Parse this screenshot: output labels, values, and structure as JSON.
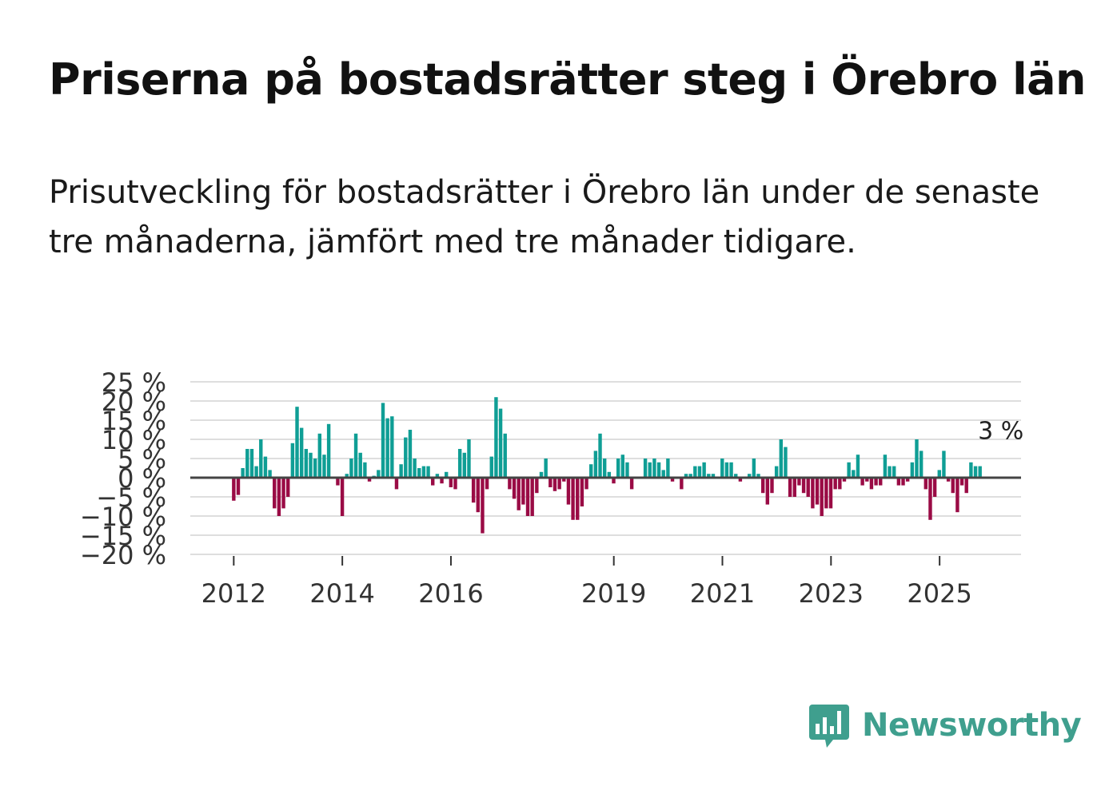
{
  "title": "Priserna på bostadsrätter steg i Örebro län",
  "subtitle": "Prisutveckling för bostadsrätter i Örebro län under de senaste tre månaderna, jämfört med tre månader tidigare.",
  "brand": {
    "name": "Newsworthy",
    "icon": "newsworthy-logo-icon",
    "color": "#3f9f8e"
  },
  "colors": {
    "positive": "#0f9e95",
    "negative": "#9a0b45",
    "grid": "#dedede",
    "zero_line": "#444444"
  },
  "chart_data": {
    "type": "bar",
    "title": "Priserna på bostadsrätter steg i Örebro län",
    "ylabel": "",
    "xlabel": "",
    "ylim": [
      -20,
      25
    ],
    "yticks": [
      25,
      20,
      15,
      10,
      5,
      0,
      -5,
      -10,
      -15,
      -20
    ],
    "ytick_labels": [
      "25 %",
      "20 %",
      "15 %",
      "10 %",
      "5 %",
      "0 %",
      "−5 %",
      "−10 %",
      "−15 %",
      "−20 %"
    ],
    "xticks": [
      {
        "label": "2012",
        "year": 2012
      },
      {
        "label": "2014",
        "year": 2014
      },
      {
        "label": "2016",
        "year": 2016
      },
      {
        "label": "2019",
        "year": 2019
      },
      {
        "label": "2021",
        "year": 2021
      },
      {
        "label": "2023",
        "year": 2023
      },
      {
        "label": "2025",
        "year": 2025
      }
    ],
    "x_start": 2011.2,
    "x_end": 2026.5,
    "first_bar_x": 2012.0,
    "step_years": 0.0833,
    "annotation": {
      "text": "3 %",
      "value": 3
    },
    "values": [
      -6,
      -4.5,
      2.5,
      7.5,
      7.5,
      3,
      10,
      5.5,
      2,
      -8,
      -10,
      -8,
      -5,
      9,
      18.5,
      13,
      7.5,
      6.5,
      5,
      11.5,
      6,
      14,
      0,
      -2,
      -10,
      1,
      5,
      11.5,
      6.5,
      4,
      -1,
      0.5,
      2,
      19.5,
      15.5,
      16,
      -3,
      3.5,
      10.5,
      12.5,
      5,
      2.5,
      3,
      3,
      -2,
      1,
      -1.5,
      1.5,
      -2.5,
      -3,
      7.5,
      6.5,
      10,
      -6.5,
      -9,
      -14.5,
      -3,
      5.5,
      21,
      18,
      11.5,
      -3,
      -5.5,
      -8.5,
      -7,
      -10,
      -10,
      -4,
      1.5,
      5,
      -2.5,
      -3.5,
      -3,
      -1,
      -7,
      -11,
      -11,
      -7.5,
      -3,
      3.5,
      7,
      11.5,
      5,
      1.5,
      -1.5,
      5,
      6,
      4,
      -3,
      0,
      0,
      5,
      4,
      5,
      4,
      2,
      5,
      -1,
      0,
      -3,
      1,
      1,
      3,
      3,
      4,
      1,
      1,
      0,
      5,
      4,
      4,
      1,
      -1,
      0,
      1,
      5,
      1,
      -4,
      -7,
      -4,
      3,
      10,
      8,
      -5,
      -5,
      -2,
      -4,
      -5,
      -8,
      -7,
      -10,
      -8,
      -8,
      -3,
      -3,
      -1,
      4,
      2,
      6,
      -2,
      -1,
      -3,
      -2,
      -2,
      6,
      3,
      3,
      -2,
      -2,
      -1,
      4,
      10,
      7,
      -3,
      -11,
      -5,
      2,
      7,
      -1,
      -4,
      -9,
      -2,
      -4,
      4,
      3,
      3
    ]
  }
}
